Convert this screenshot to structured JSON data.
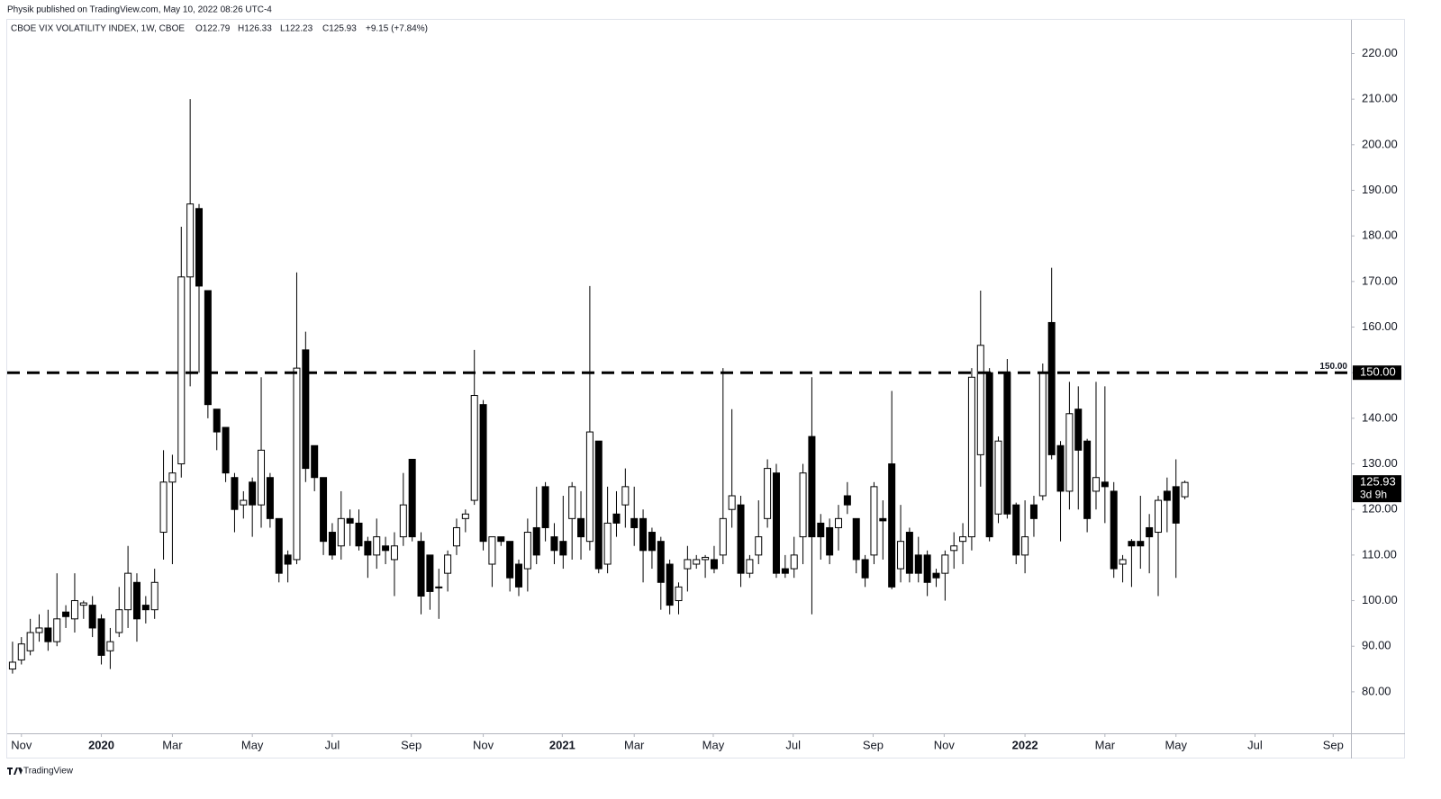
{
  "header": "Physik published on TradingView.com, May 10, 2022 08:26 UTC-4",
  "footer": "TradingView",
  "chart_data": {
    "type": "candlestick",
    "title": "CBOE VIX VOLATILITY INDEX, 1W, CBOE",
    "ohlc_labels": [
      "O122.79",
      "H126.33",
      "L122.23",
      "C125.93"
    ],
    "change": "+9.15 (+7.84%)",
    "up_color": "#ffffff",
    "down_color": "#000000",
    "border_color": "#000000",
    "open": [
      85,
      87,
      89,
      93,
      94,
      91,
      97.5,
      96,
      99,
      99,
      96,
      89,
      93,
      98,
      104,
      99,
      98,
      115,
      126,
      130,
      171,
      186,
      168,
      142,
      138,
      127,
      121,
      126,
      121,
      127,
      118,
      110,
      109,
      155,
      134,
      127,
      115,
      112,
      118,
      117,
      113,
      110,
      112,
      109,
      114,
      131,
      113,
      110,
      103,
      106,
      112,
      118,
      122,
      143,
      108,
      114,
      113,
      108,
      107,
      116,
      125,
      114,
      113,
      118,
      118,
      113,
      135,
      108,
      119,
      121,
      118,
      118,
      115,
      113,
      108,
      100,
      107,
      108,
      109,
      109,
      110,
      120,
      121,
      106,
      110,
      118,
      128,
      107,
      107,
      114,
      136,
      117,
      116,
      116,
      123,
      118,
      109,
      110,
      118,
      130,
      107,
      115,
      110,
      110,
      106,
      106,
      111,
      113,
      114,
      132,
      150,
      119,
      150,
      121,
      110,
      121,
      123,
      161,
      134,
      124,
      142,
      135,
      124,
      126,
      124,
      108,
      113,
      113,
      116,
      115,
      124,
      125,
      122.79
    ],
    "high": [
      91,
      92,
      96,
      97,
      98,
      106,
      99,
      106,
      100,
      101,
      97,
      94,
      103,
      112,
      106,
      101,
      107,
      133,
      132,
      182,
      210,
      187,
      168,
      142,
      138,
      128,
      124,
      127,
      149,
      128,
      118,
      111,
      172,
      159,
      134,
      127,
      117,
      124,
      120,
      120,
      114,
      118,
      114,
      115,
      128,
      131,
      115,
      110,
      107,
      111,
      118,
      120,
      155,
      144,
      114,
      114,
      113,
      109,
      118,
      125,
      126,
      117,
      123,
      126,
      124,
      169,
      135,
      125,
      124,
      129,
      125,
      120,
      116,
      114,
      109,
      104,
      112,
      110,
      110,
      112,
      151,
      142,
      123,
      110,
      122,
      131,
      130,
      110,
      114,
      130,
      149,
      119,
      118,
      121,
      126,
      118,
      110,
      126,
      122,
      146,
      121,
      116,
      114,
      111,
      107,
      111,
      115,
      117,
      151,
      168,
      151,
      136,
      153,
      121.5,
      122,
      123,
      152,
      173,
      135,
      148,
      147,
      135.5,
      148,
      147,
      126,
      110,
      113.5,
      123,
      119,
      123,
      127,
      131,
      126.33
    ],
    "low": [
      84,
      86,
      88,
      91,
      89,
      90,
      94,
      93,
      96,
      92,
      86,
      85,
      92,
      94,
      91,
      95,
      96,
      109,
      108,
      127,
      147,
      150,
      140,
      133,
      126,
      115,
      118,
      114,
      116,
      116,
      104,
      104,
      108,
      126,
      124,
      110,
      109,
      109,
      112,
      111,
      105,
      107,
      108,
      101,
      112,
      113,
      97,
      98,
      96,
      102,
      110,
      115,
      121,
      111,
      103,
      112,
      102,
      101,
      102,
      108,
      113,
      108,
      107,
      109,
      109,
      111,
      106,
      106,
      114,
      116,
      112,
      104,
      107,
      98,
      97,
      97,
      102,
      107,
      105,
      106,
      108,
      116,
      103,
      105,
      108,
      116,
      105,
      105,
      105,
      108,
      97,
      109,
      108,
      111,
      119,
      106,
      103,
      108,
      109,
      102.5,
      104,
      104,
      104,
      101,
      103,
      100,
      107,
      108,
      111,
      125,
      113,
      117,
      118,
      108,
      106,
      114,
      122,
      131,
      113,
      120,
      120,
      115,
      120,
      117,
      105,
      104,
      103,
      107,
      106,
      101,
      115,
      105,
      122.23
    ],
    "close": [
      86.5,
      90.5,
      93,
      94,
      91,
      96,
      96.5,
      100,
      99.5,
      94,
      88,
      91,
      98,
      106,
      96,
      98,
      104,
      126,
      128,
      171,
      187,
      169,
      143,
      137,
      128,
      120,
      122,
      121,
      133,
      118,
      106,
      108,
      151,
      129,
      127,
      113,
      110,
      118,
      117,
      112,
      110,
      114,
      111,
      112,
      121,
      114,
      101,
      102,
      103,
      110,
      116,
      119,
      145,
      113,
      114,
      113,
      105,
      103,
      115,
      110,
      116,
      111,
      110,
      125,
      114,
      137,
      107,
      117,
      117,
      125,
      116,
      111,
      111,
      104,
      99,
      103,
      109,
      109,
      109.5,
      107,
      118,
      123,
      106,
      109,
      114,
      129,
      106,
      106,
      110,
      128,
      114,
      114,
      110,
      118,
      121,
      109,
      105,
      125,
      117.5,
      103,
      113,
      106,
      106,
      104,
      105,
      110,
      112,
      114,
      149,
      156,
      114,
      135,
      119,
      110,
      114,
      118,
      150,
      132,
      124,
      141,
      133,
      118,
      127,
      125,
      107,
      109,
      112,
      112,
      114,
      122,
      122,
      117,
      125.93
    ],
    "xticks": [
      {
        "value": 1,
        "label": "Nov"
      },
      {
        "value": 10,
        "label": "2020"
      },
      {
        "value": 18,
        "label": "Mar"
      },
      {
        "value": 27,
        "label": "May"
      },
      {
        "value": 36,
        "label": "Jul"
      },
      {
        "value": 44.9,
        "label": "Sep"
      },
      {
        "value": 53,
        "label": "Nov"
      },
      {
        "value": 61.9,
        "label": "2021"
      },
      {
        "value": 70,
        "label": "Mar"
      },
      {
        "value": 78.9,
        "label": "May"
      },
      {
        "value": 87.9,
        "label": "Jul"
      },
      {
        "value": 96.9,
        "label": "Sep"
      },
      {
        "value": 104.9,
        "label": "Nov"
      },
      {
        "value": 114,
        "label": "2022"
      },
      {
        "value": 123,
        "label": "Mar"
      },
      {
        "value": 131,
        "label": "May"
      },
      {
        "value": 139.9,
        "label": "Jul"
      },
      {
        "value": 148.7,
        "label": "Sep"
      }
    ],
    "xlim": [
      -0.6,
      150.7
    ],
    "ylim": [
      70.9,
      227.4
    ],
    "yticks": [
      {
        "value": 80,
        "label": "80.00"
      },
      {
        "value": 90,
        "label": "90.00"
      },
      {
        "value": 100,
        "label": "100.00"
      },
      {
        "value": 110,
        "label": "110.00"
      },
      {
        "value": 120,
        "label": "120.00"
      },
      {
        "value": 130,
        "label": "130.00"
      },
      {
        "value": 140,
        "label": "140.00"
      },
      {
        "value": 150,
        "label": "150.00"
      },
      {
        "value": 160,
        "label": "160.00"
      },
      {
        "value": 170,
        "label": "170.00"
      },
      {
        "value": 180,
        "label": "180.00"
      },
      {
        "value": 190,
        "label": "190.00"
      },
      {
        "value": 200,
        "label": "200.00"
      },
      {
        "value": 210,
        "label": "210.00"
      },
      {
        "value": 220,
        "label": "220.00"
      }
    ],
    "hline": {
      "value": 150,
      "label": "150.00"
    },
    "last_price": {
      "value": 125.93,
      "label": "125.93",
      "countdown": "3d 9h"
    }
  }
}
